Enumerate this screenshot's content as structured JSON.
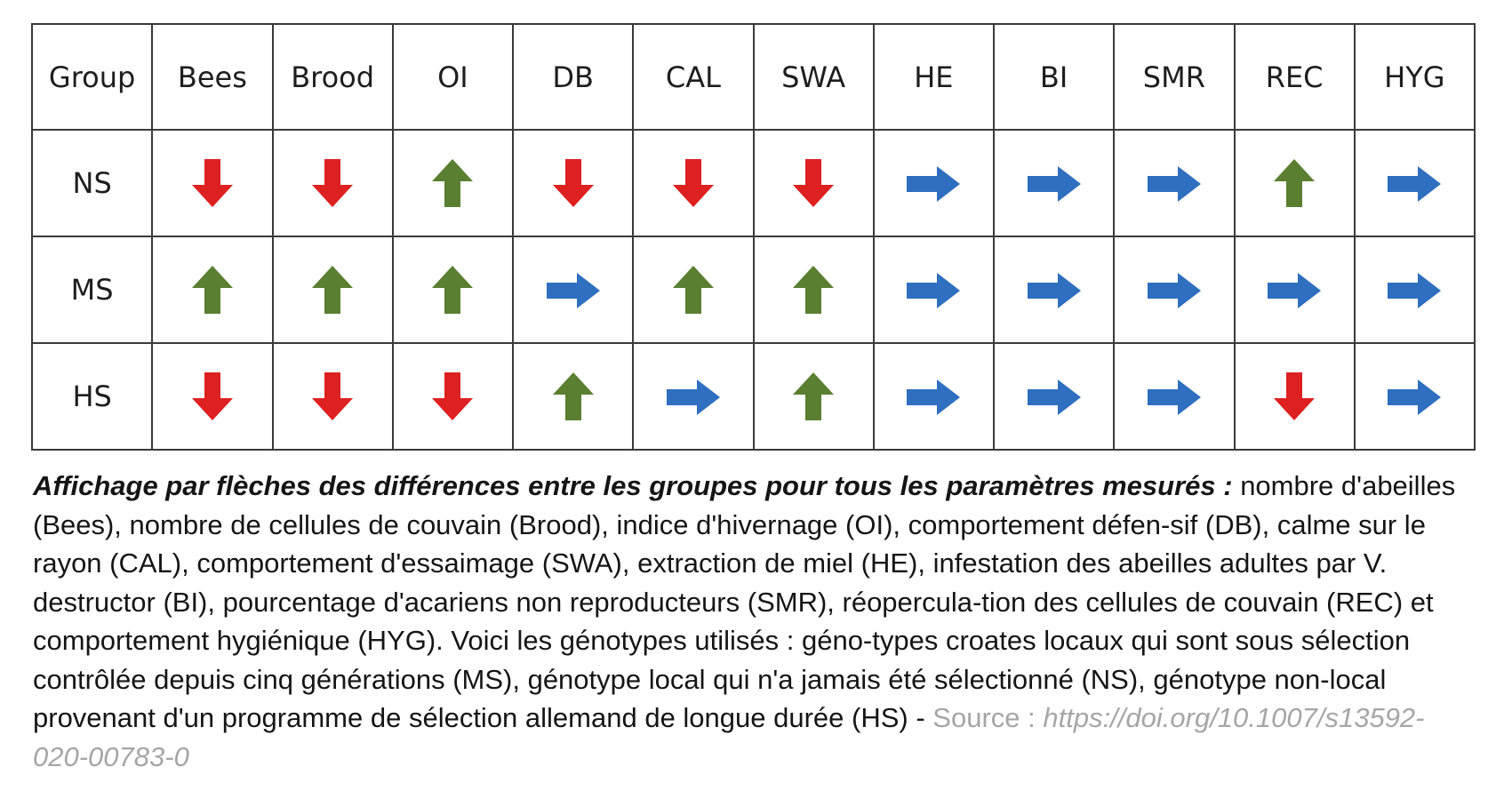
{
  "table": {
    "headers": [
      "Group",
      "Bees",
      "Brood",
      "OI",
      "DB",
      "CAL",
      "SWA",
      "HE",
      "BI",
      "SMR",
      "REC",
      "HYG"
    ],
    "rows": [
      {
        "group": "NS",
        "cells": [
          "down",
          "down",
          "up",
          "down",
          "down",
          "down",
          "right",
          "right",
          "right",
          "up",
          "right"
        ]
      },
      {
        "group": "MS",
        "cells": [
          "up",
          "up",
          "up",
          "right",
          "up",
          "up",
          "right",
          "right",
          "right",
          "right",
          "right"
        ]
      },
      {
        "group": "HS",
        "cells": [
          "down",
          "down",
          "down",
          "up",
          "right",
          "up",
          "right",
          "right",
          "right",
          "down",
          "right"
        ]
      }
    ]
  },
  "arrow_colors": {
    "down": "#dd2121",
    "up": "#5a7f31",
    "right": "#2e6fc0"
  },
  "arrow_icons": {
    "down": "red-down-arrow-icon",
    "up": "green-up-arrow-icon",
    "right": "blue-right-arrow-icon"
  },
  "caption": {
    "title": "Affichage par flèches des différences entre les groupes pour tous les paramètres mesurés :",
    "body": " nombre d'abeilles (Bees), nombre de cellules de couvain (Brood), indice d'hivernage (OI), comportement défen-sif (DB), calme sur le rayon (CAL), comportement d'essaimage (SWA), extraction de miel (HE), infestation des abeilles adultes par V. destructor (BI), pourcentage d'acariens non reproducteurs (SMR), réopercula-tion des cellules de couvain (REC) et comportement hygiénique (HYG). Voici les génotypes utilisés : géno-types croates locaux qui sont sous sélection contrôlée depuis cinq générations (MS), génotype local qui n'a jamais été  sélectionné (NS), génotype non-local provenant d'un programme de sélection allemand de longue durée (HS)",
    "separator": " - ",
    "source_label": "Source : ",
    "source_url": "https://doi.org/10.1007/s13592-020-00783-0"
  }
}
